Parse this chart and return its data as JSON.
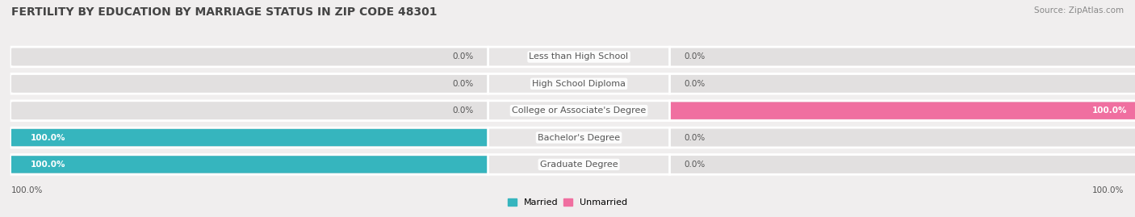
{
  "title": "FERTILITY BY EDUCATION BY MARRIAGE STATUS IN ZIP CODE 48301",
  "source": "Source: ZipAtlas.com",
  "categories": [
    "Less than High School",
    "High School Diploma",
    "College or Associate's Degree",
    "Bachelor's Degree",
    "Graduate Degree"
  ],
  "married": [
    0.0,
    0.0,
    0.0,
    100.0,
    100.0
  ],
  "unmarried": [
    0.0,
    0.0,
    100.0,
    0.0,
    0.0
  ],
  "married_color": "#36B5BE",
  "married_light_color": "#A8D8DB",
  "unmarried_color": "#F06FA0",
  "unmarried_light_color": "#F5B8CF",
  "bg_color": "#F0EEEE",
  "bar_bg_color": "#E2E0E0",
  "row_bg_color": "#E8E6E6",
  "title_color": "#444444",
  "source_color": "#888888",
  "label_color": "#555555",
  "legend_married": "Married",
  "legend_unmarried": "Unmarried",
  "bar_height": 0.62,
  "title_fontsize": 10,
  "label_fontsize": 8,
  "value_fontsize": 7.5,
  "source_fontsize": 7.5,
  "legend_fontsize": 8
}
